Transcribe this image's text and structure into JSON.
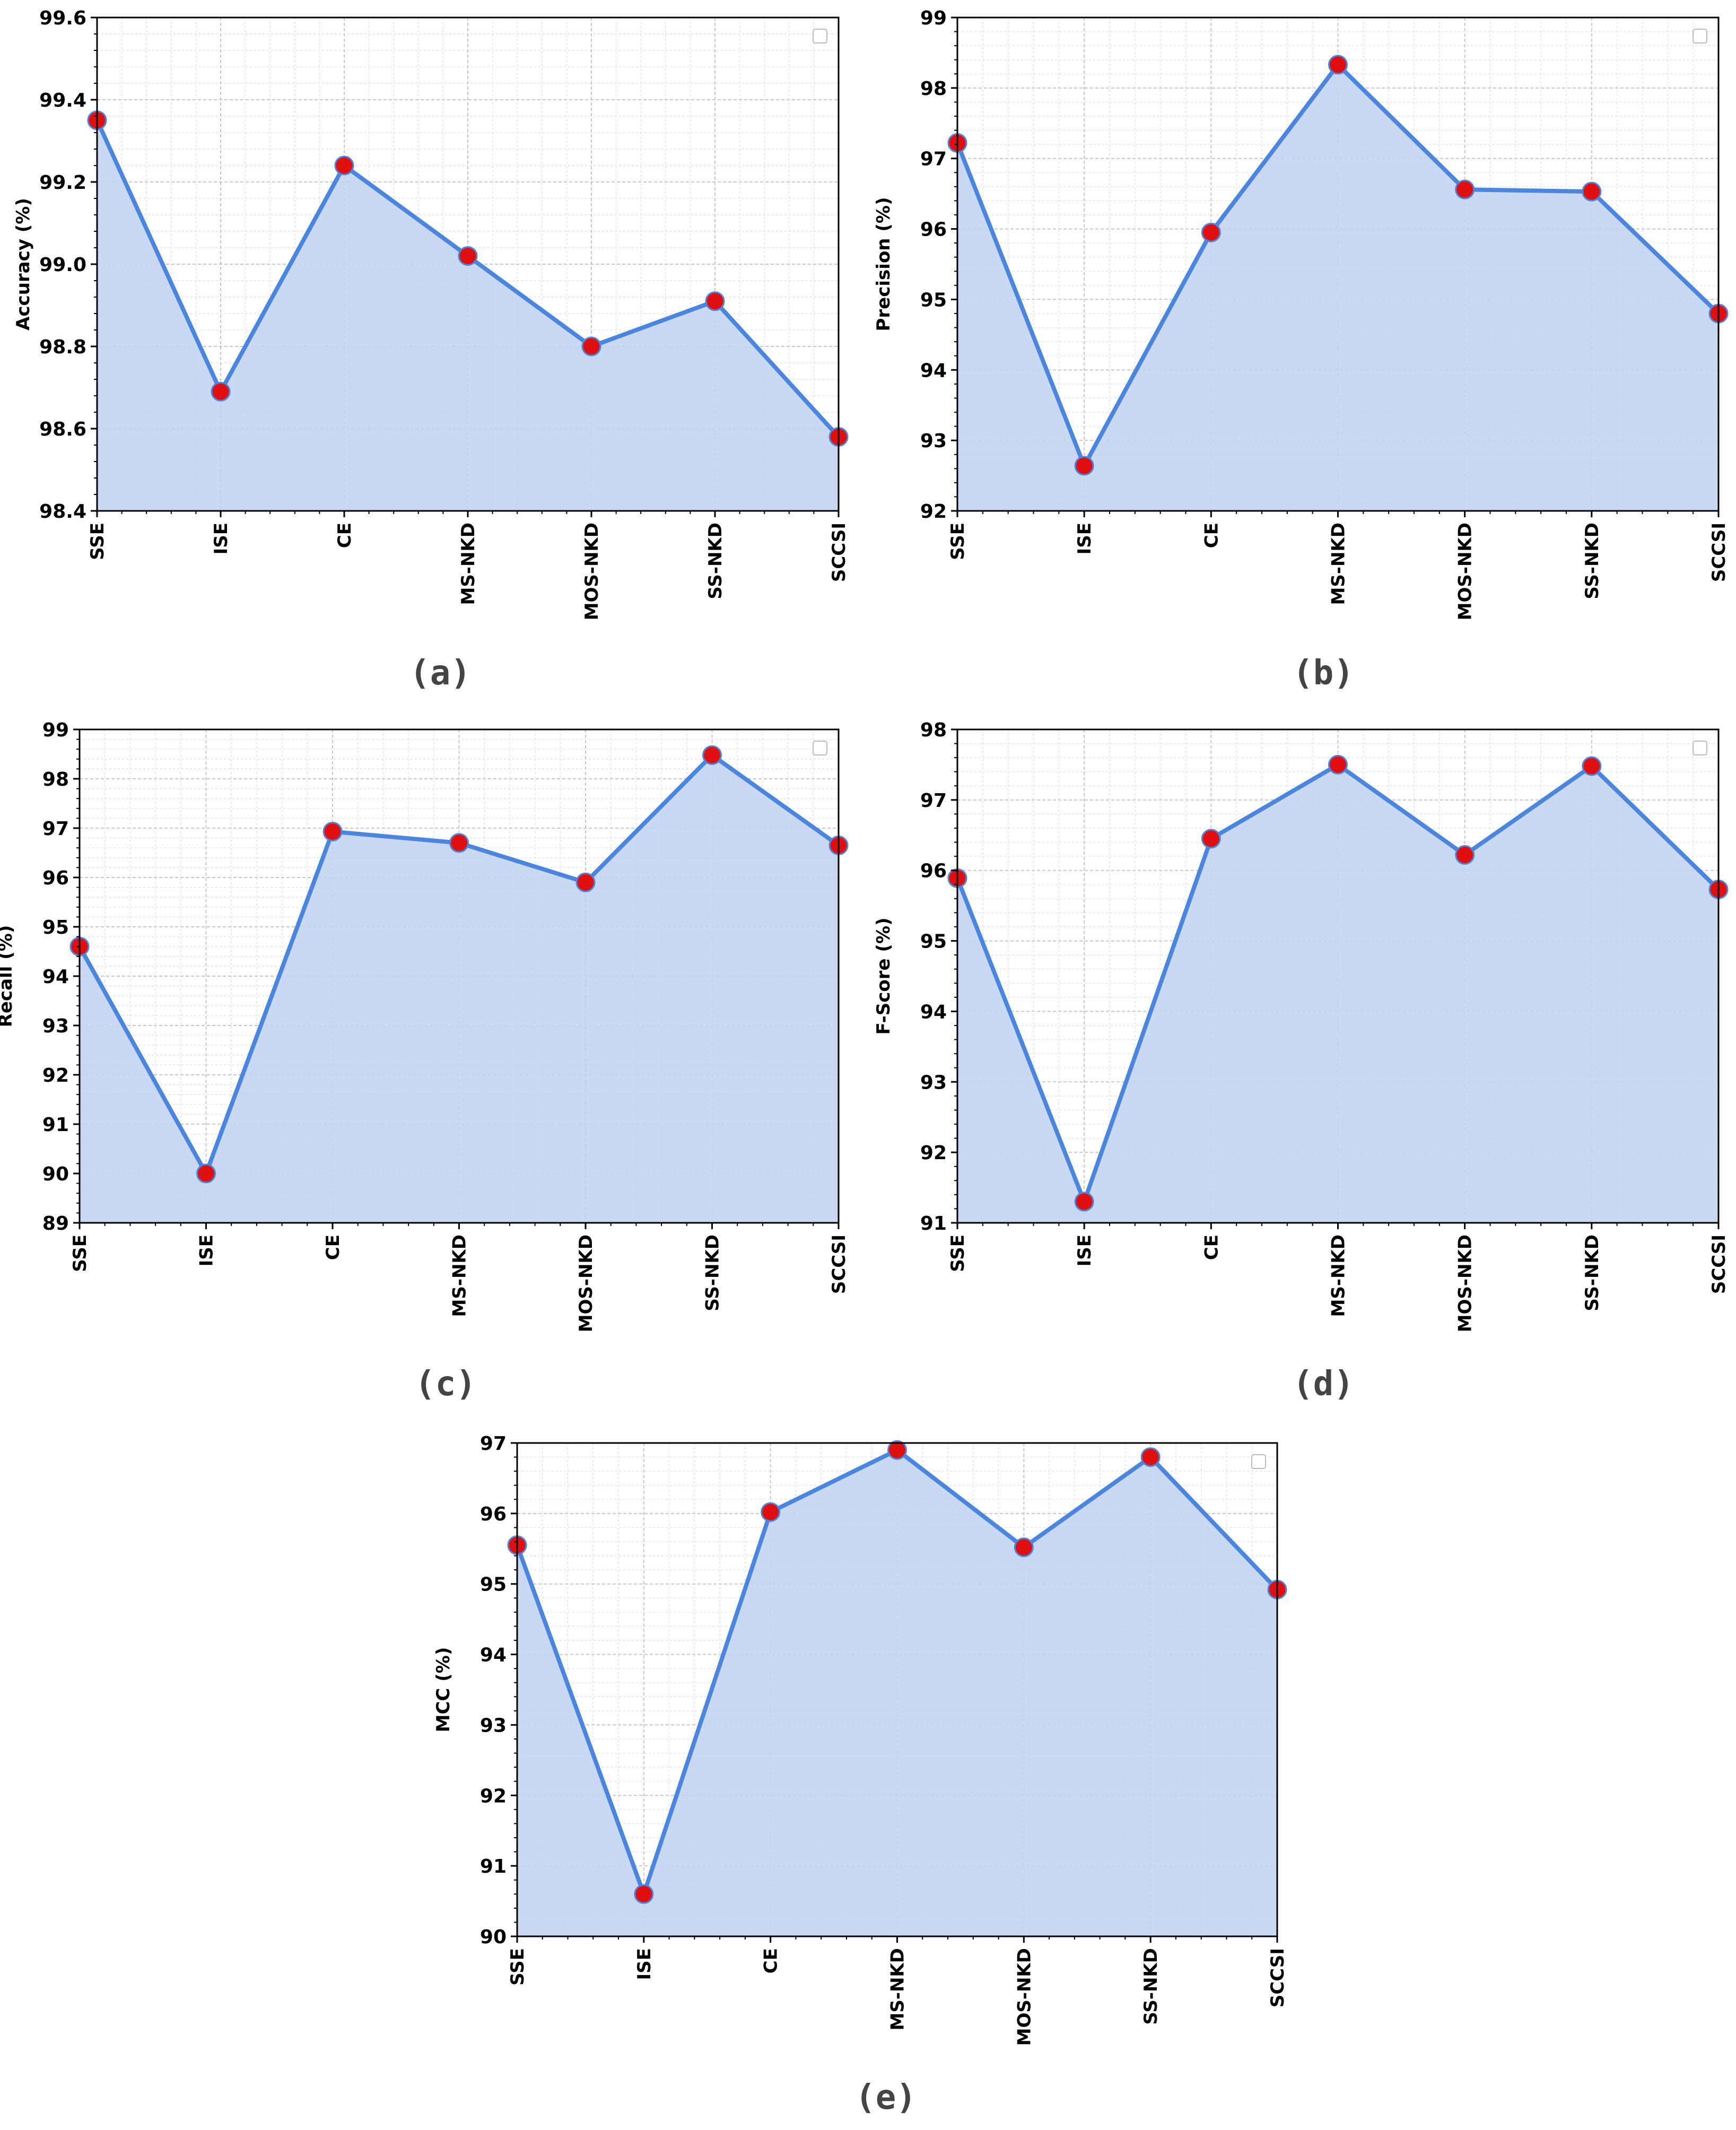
{
  "chart_data": [
    {
      "type": "area",
      "panel_label": "(a)",
      "ylabel": "Accuracy (%)",
      "categories": [
        "SSE",
        "ISE",
        "CE",
        "MS-NKD",
        "MOS-NKD",
        "SS-NKD",
        "SCCSI"
      ],
      "values": [
        99.35,
        98.69,
        99.24,
        99.02,
        98.8,
        98.91,
        98.58
      ],
      "ylim": [
        98.4,
        99.6
      ],
      "yticks": [
        "98.4",
        "98.6",
        "98.8",
        "99.0",
        "99.2",
        "99.4",
        "99.6"
      ],
      "grid": true,
      "legend": "top-right (empty)"
    },
    {
      "type": "area",
      "panel_label": "(b)",
      "ylabel": "Precision (%)",
      "categories": [
        "SSE",
        "ISE",
        "CE",
        "MS-NKD",
        "MOS-NKD",
        "SS-NKD",
        "SCCSI"
      ],
      "values": [
        97.22,
        92.64,
        95.95,
        98.33,
        96.56,
        96.53,
        94.8
      ],
      "ylim": [
        92,
        99
      ],
      "yticks": [
        "92",
        "93",
        "94",
        "95",
        "96",
        "97",
        "98",
        "99"
      ],
      "grid": true,
      "legend": "top-right (empty)"
    },
    {
      "type": "area",
      "panel_label": "(c)",
      "ylabel": "Recall (%)",
      "categories": [
        "SSE",
        "ISE",
        "CE",
        "MS-NKD",
        "MOS-NKD",
        "SS-NKD",
        "SCCSI"
      ],
      "values": [
        94.6,
        90.0,
        96.93,
        96.7,
        95.9,
        98.48,
        96.65
      ],
      "ylim": [
        89,
        99
      ],
      "yticks": [
        "89",
        "90",
        "91",
        "92",
        "93",
        "94",
        "95",
        "96",
        "97",
        "98",
        "99"
      ],
      "grid": true,
      "legend": "top-right (empty)"
    },
    {
      "type": "area",
      "panel_label": "(d)",
      "ylabel": "F-Score (%)",
      "categories": [
        "SSE",
        "ISE",
        "CE",
        "MS-NKD",
        "MOS-NKD",
        "SS-NKD",
        "SCCSI"
      ],
      "values": [
        95.89,
        91.3,
        96.45,
        97.5,
        96.22,
        97.48,
        95.73
      ],
      "ylim": [
        91,
        98
      ],
      "yticks": [
        "91",
        "92",
        "93",
        "94",
        "95",
        "96",
        "97",
        "98"
      ],
      "grid": true,
      "legend": "top-right (empty)"
    },
    {
      "type": "area",
      "panel_label": "(e)",
      "ylabel": "MCC (%)",
      "categories": [
        "SSE",
        "ISE",
        "CE",
        "MS-NKD",
        "MOS-NKD",
        "SS-NKD",
        "SCCSI"
      ],
      "values": [
        95.55,
        90.6,
        96.02,
        96.9,
        95.52,
        96.8,
        94.92
      ],
      "ylim": [
        90,
        97
      ],
      "yticks": [
        "90",
        "91",
        "92",
        "93",
        "94",
        "95",
        "96",
        "97"
      ],
      "grid": true,
      "legend": "top-right (empty)"
    }
  ],
  "colors": {
    "line": "#4a86e0",
    "fill": "#c4d5f2",
    "marker": "#e01010",
    "grid_major": "#c8c8c8",
    "grid_minor": "#e4e4e4"
  }
}
